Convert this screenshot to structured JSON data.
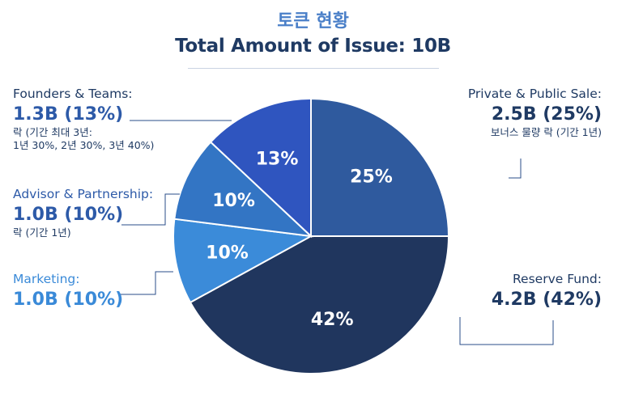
{
  "title_ko": "토큰 현황",
  "title_en": "Total Amount of Issue: 10B",
  "chart_data": {
    "type": "pie",
    "title": "Total Amount of Issue: 10B",
    "slices": [
      {
        "name": "Private & Public Sale:",
        "value": 25,
        "pct_label": "25%",
        "amount_label": "2.5B (25%)",
        "note": "보너스 물량 락 (기간 1년)",
        "color": "#2f5a9e"
      },
      {
        "name": "Reserve Fund:",
        "value": 42,
        "pct_label": "42%",
        "amount_label": "4.2B (42%)",
        "color": "#20365e"
      },
      {
        "name": "Marketing:",
        "value": 10,
        "pct_label": "10%",
        "amount_label": "1.0B (10%)",
        "color": "#3b8bd9"
      },
      {
        "name": "Advisor & Partnership:",
        "value": 10,
        "pct_label": "10%",
        "amount_label": "1.0B (10%)",
        "note": "락 (기간 1년)",
        "color": "#3375c4"
      },
      {
        "name": "Founders & Teams:",
        "value": 13,
        "pct_label": "13%",
        "amount_label": "1.3B (13%)",
        "note": "락 (기간 최대 3년:",
        "note2": "1년 30%, 2년 30%, 3년 40%)",
        "color": "#2f55bf"
      }
    ]
  }
}
